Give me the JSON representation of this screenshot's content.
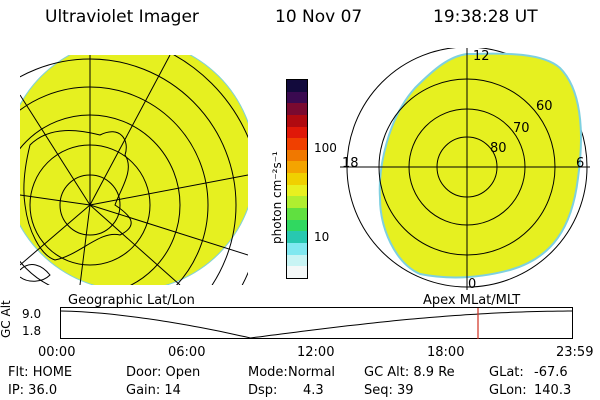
{
  "header": {
    "title": "Ultraviolet Imager",
    "date": "10 Nov 07",
    "time": "19:38:28 UT"
  },
  "colors": {
    "image_fill": "#e6f020",
    "image_edge": "#7ed0e0",
    "panel_background": "#ffffff",
    "grid_line": "#000000",
    "time_marker": "#d03020"
  },
  "left_panel": {
    "label": "Geographic Lat/Lon"
  },
  "right_panel": {
    "label": "Apex  MLat/MLT",
    "mlt_labels": [
      "12",
      "18",
      "6",
      "0"
    ],
    "mlat_labels": [
      "60",
      "70",
      "80"
    ]
  },
  "colorbar": {
    "unit_label": "photon cm⁻²s⁻¹",
    "ticks": [
      "100",
      "10"
    ],
    "colors": [
      "#120a3c",
      "#3a0a50",
      "#7a0a30",
      "#b00a10",
      "#e01808",
      "#f04000",
      "#f07800",
      "#f4a400",
      "#f0d000",
      "#e8f020",
      "#b0ee30",
      "#60e040",
      "#30d860",
      "#28c8b0",
      "#80e8f0",
      "#c8f4f4",
      "#f4f8f8"
    ]
  },
  "alt_plot": {
    "axis_label": "GC Alt",
    "y_ticks": [
      "9.0",
      "1.8"
    ],
    "x_ticks": [
      "00:00",
      "06:00",
      "12:00",
      "18:00",
      "23:59"
    ],
    "marker_time": "19:38"
  },
  "status": {
    "flt": "Flt: HOME",
    "door": "Door: Open",
    "mode_key": "Mode:",
    "mode_val": "Normal",
    "gcalt": "GC Alt: 8.9 Re",
    "glat_key": "GLat:",
    "glat_val": "-67.6",
    "ip": "IP: 36.0",
    "gain": "Gain: 14",
    "dsp_key": "Dsp:",
    "dsp_val": "4.3",
    "seq": "Seq: 39",
    "glon_key": "GLon:",
    "glon_val": "140.3"
  }
}
